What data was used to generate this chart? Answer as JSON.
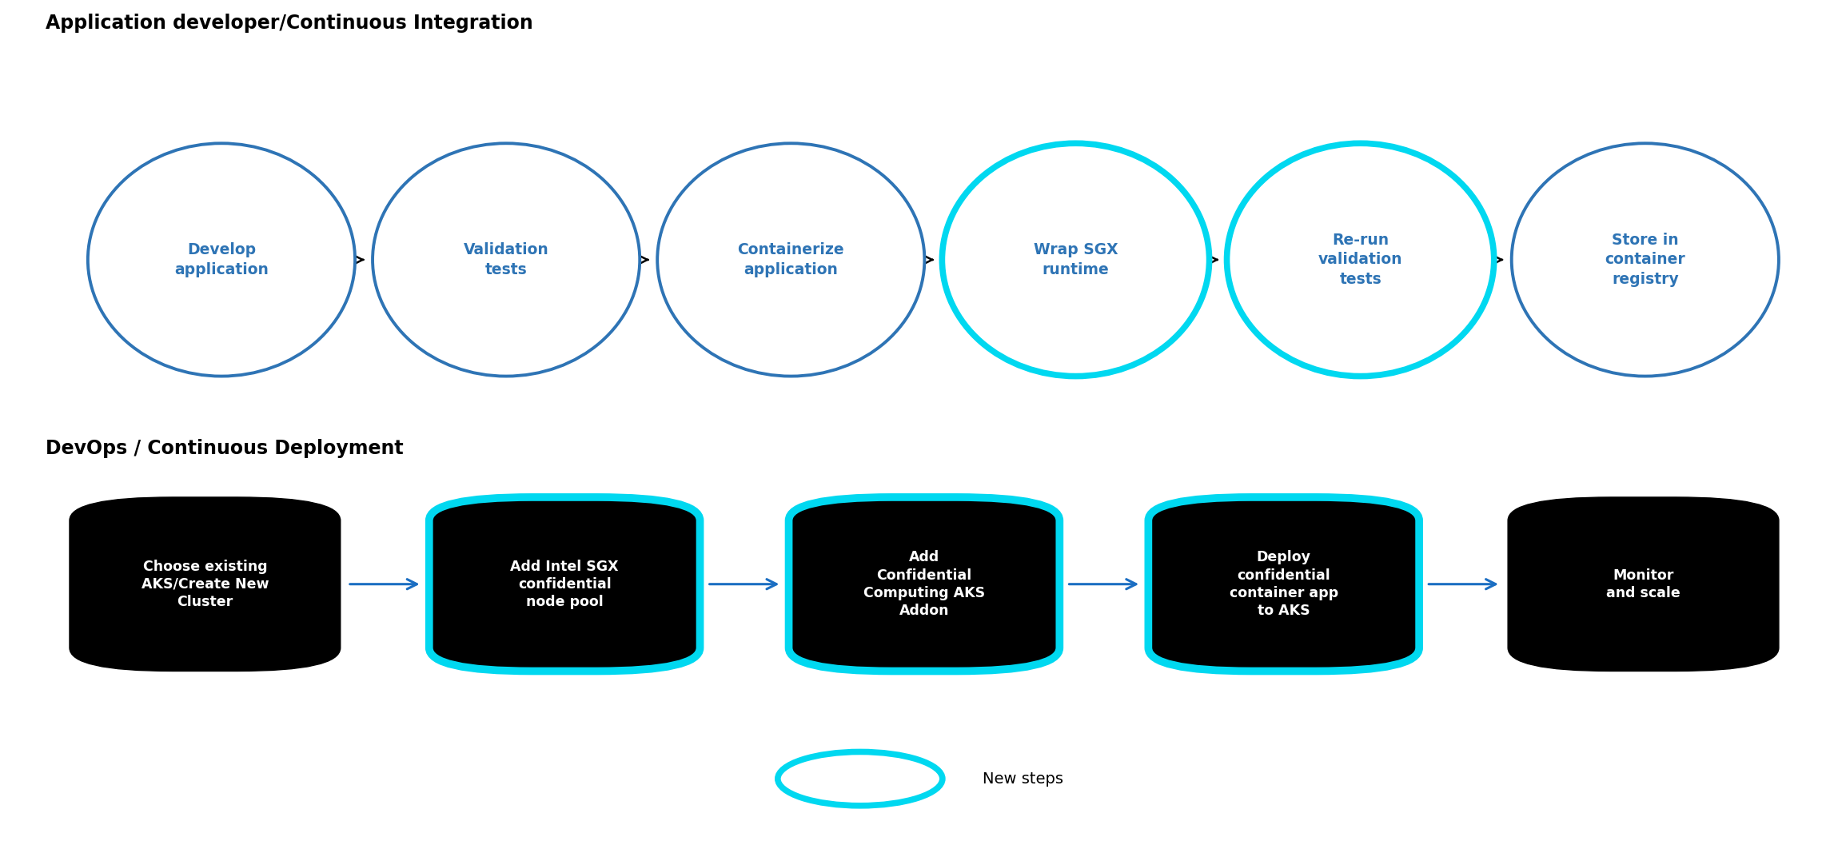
{
  "top_title": "Application developer/Continuous Integration",
  "bottom_title": "DevOps / Continuous Deployment",
  "top_section_bg": "#ffffff",
  "bottom_section_bg": "#e5e5e5",
  "top_nodes": [
    {
      "label": "Develop\napplication",
      "new_step": false
    },
    {
      "label": "Validation\ntests",
      "new_step": false
    },
    {
      "label": "Containerize\napplication",
      "new_step": false
    },
    {
      "label": "Wrap SGX\nruntime",
      "new_step": true
    },
    {
      "label": "Re-run\nvalidation\ntests",
      "new_step": true
    },
    {
      "label": "Store in\ncontainer\nregistry",
      "new_step": false
    }
  ],
  "bottom_nodes": [
    {
      "label": "Choose existing\nAKS/Create New\nCluster",
      "new_step": false
    },
    {
      "label": "Add Intel SGX\nconfidential\nnode pool",
      "new_step": true
    },
    {
      "label": "Add\nConfidential\nComputing AKS\nAddon",
      "new_step": true
    },
    {
      "label": "Deploy\nconfidential\ncontainer app\nto AKS",
      "new_step": true
    },
    {
      "label": "Monitor\nand scale",
      "new_step": false
    }
  ],
  "top_node_fill": "#ffffff",
  "top_node_border_normal": "#2e74b5",
  "top_node_border_new": "#00d8f0",
  "top_node_text_color": "#2e74b5",
  "bottom_node_fill": "#000000",
  "bottom_node_border_normal": "#000000",
  "bottom_node_border_new": "#00d8f0",
  "bottom_node_text_color": "#ffffff",
  "top_arrow_color": "#000000",
  "bottom_arrow_color": "#1b6ec2",
  "legend_label": "New steps",
  "legend_box_color": "#00d8f0",
  "legend_box_fill": "#ffffff"
}
